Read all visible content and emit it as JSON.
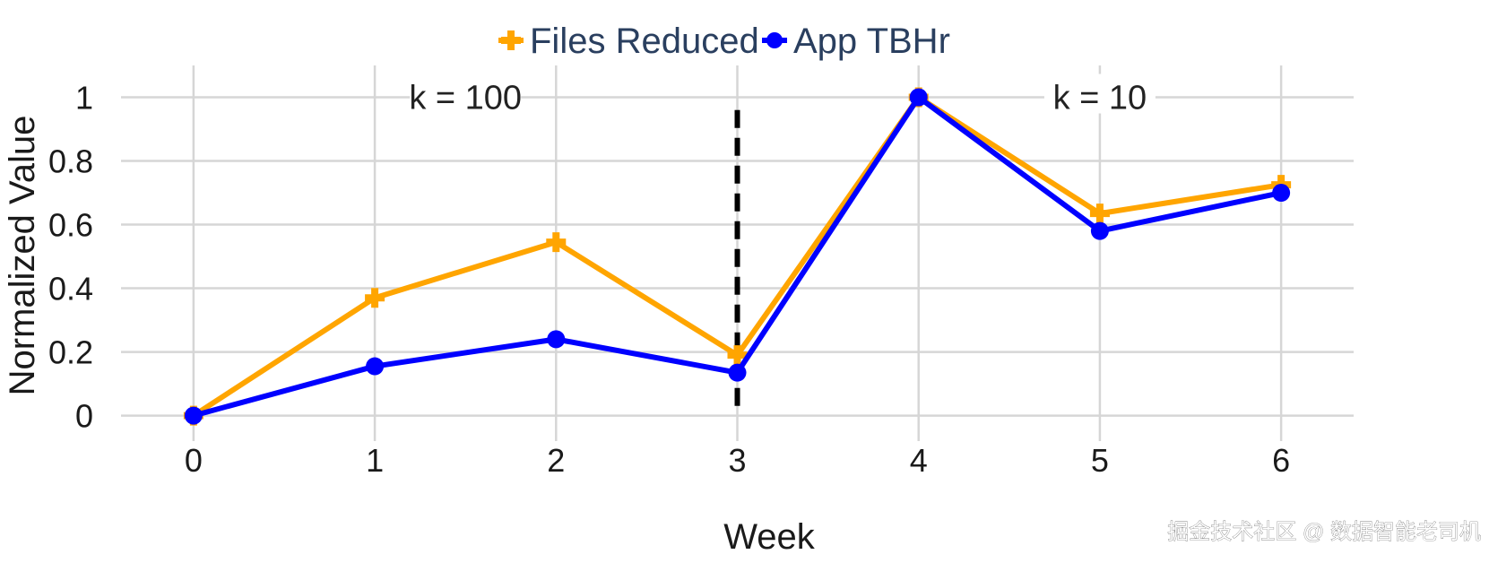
{
  "chart_data": {
    "type": "line",
    "title": "",
    "xlabel": "Week",
    "ylabel": "Normalized Value",
    "x": [
      0,
      1,
      2,
      3,
      4,
      5,
      6
    ],
    "x_ticks": [
      "0",
      "1",
      "2",
      "3",
      "4",
      "5",
      "6"
    ],
    "y_ticks": [
      "0",
      "0.2",
      "0.4",
      "0.6",
      "0.8",
      "1"
    ],
    "y_tick_values": [
      0,
      0.2,
      0.4,
      0.6,
      0.8,
      1
    ],
    "xlim": [
      -0.4,
      6.4
    ],
    "ylim": [
      -0.08,
      1.1
    ],
    "grid": true,
    "legend_position": "top-center",
    "series": [
      {
        "name": "Files Reduced",
        "color": "#FFA500",
        "marker": "cross",
        "values": [
          0.0,
          0.37,
          0.545,
          0.19,
          1.0,
          0.635,
          0.725
        ]
      },
      {
        "name": "App TBHr",
        "color": "#0000FF",
        "marker": "circle",
        "values": [
          0.0,
          0.155,
          0.24,
          0.135,
          1.0,
          0.58,
          0.7
        ]
      }
    ],
    "vertical_line": {
      "x": 3,
      "style": "dashed",
      "color": "#000000"
    },
    "annotations": [
      {
        "text": "k = 100",
        "x": 1.5,
        "y": 1.0
      },
      {
        "text": "k = 10",
        "x": 5.0,
        "y": 1.0
      }
    ]
  },
  "watermark": {
    "text": "掘金技术社区 @ 数据智能老司机"
  }
}
